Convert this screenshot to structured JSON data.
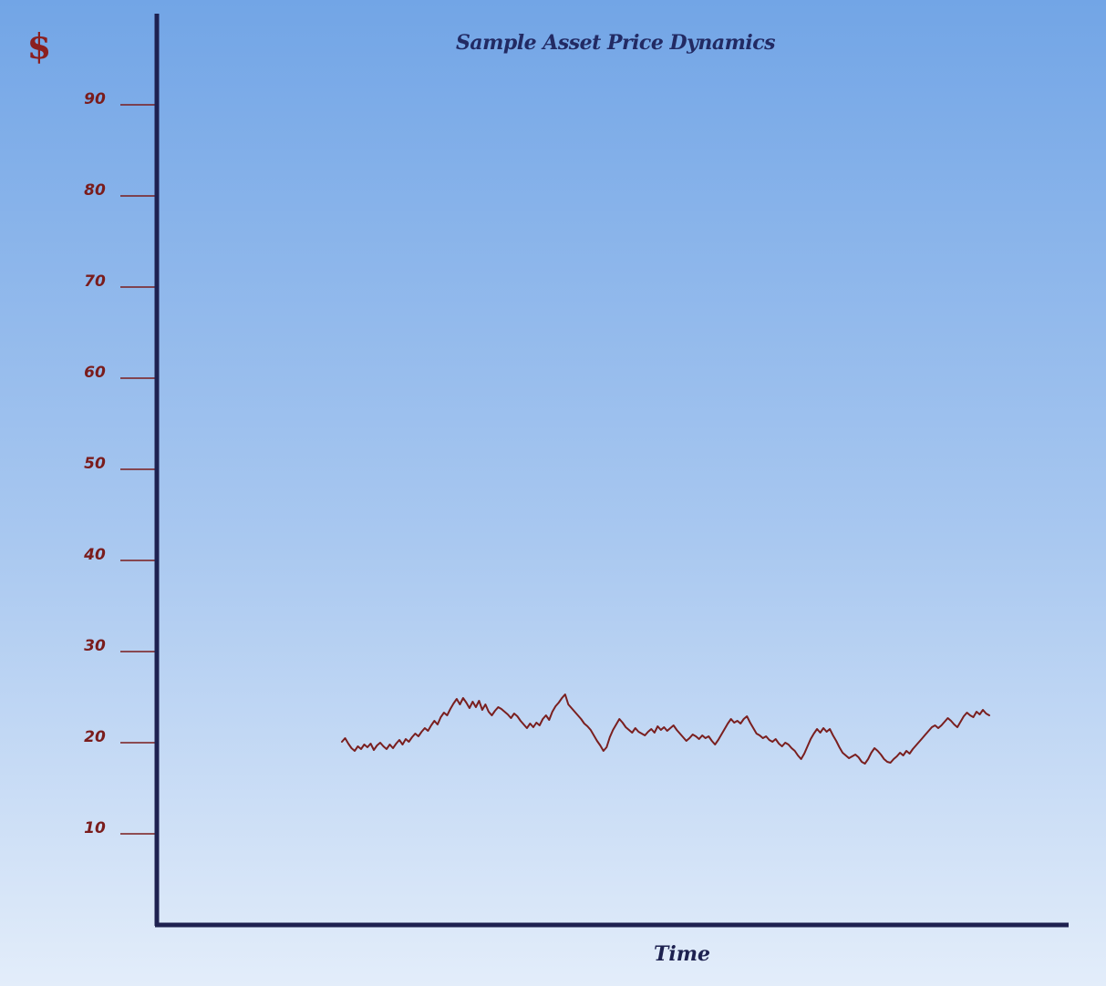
{
  "chart_data": {
    "type": "line",
    "title": "Sample Asset Price Dynamics",
    "xlabel": "Time",
    "ylabel": "$",
    "ylim": [
      0,
      100
    ],
    "yticks": [
      10,
      20,
      30,
      40,
      50,
      60,
      70,
      80,
      90
    ],
    "ytick_labels": [
      "10",
      "20",
      "30",
      "40",
      "50",
      "60",
      "70",
      "80",
      "90"
    ],
    "grid": false,
    "colors": {
      "line": "#7a1f1f",
      "axis": "#1e2150",
      "tick": "#7a1c1c"
    },
    "series": [
      {
        "values": [
          20.1,
          20.5,
          19.9,
          19.4,
          19.1,
          19.6,
          19.3,
          19.8,
          19.5,
          19.9,
          19.2,
          19.7,
          20.0,
          19.6,
          19.3,
          19.8,
          19.4,
          19.9,
          20.3,
          19.8,
          20.4,
          20.1,
          20.6,
          21.0,
          20.7,
          21.2,
          21.6,
          21.3,
          21.9,
          22.4,
          22.0,
          22.8,
          23.3,
          23.0,
          23.7,
          24.3,
          24.8,
          24.2,
          24.9,
          24.4,
          23.8,
          24.5,
          23.9,
          24.6,
          23.6,
          24.2,
          23.4,
          23.0,
          23.5,
          23.9,
          23.7,
          23.4,
          23.1,
          22.7,
          23.2,
          22.9,
          22.4,
          22.0,
          21.6,
          22.1,
          21.7,
          22.2,
          21.9,
          22.6,
          23.0,
          22.5,
          23.4,
          24.0,
          24.4,
          24.9,
          25.3,
          24.2,
          23.8,
          23.4,
          23.0,
          22.6,
          22.1,
          21.8,
          21.4,
          20.8,
          20.2,
          19.7,
          19.1,
          19.5,
          20.6,
          21.4,
          22.0,
          22.6,
          22.2,
          21.7,
          21.4,
          21.1,
          21.6,
          21.2,
          21.0,
          20.8,
          21.2,
          21.5,
          21.1,
          21.8,
          21.4,
          21.7,
          21.3,
          21.6,
          21.9,
          21.4,
          21.0,
          20.6,
          20.2,
          20.5,
          20.9,
          20.7,
          20.4,
          20.8,
          20.5,
          20.7,
          20.2,
          19.8,
          20.3,
          20.9,
          21.5,
          22.1,
          22.6,
          22.2,
          22.4,
          22.1,
          22.6,
          22.9,
          22.2,
          21.6,
          21.0,
          20.8,
          20.5,
          20.7,
          20.3,
          20.1,
          20.4,
          19.9,
          19.6,
          20.0,
          19.8,
          19.4,
          19.1,
          18.6,
          18.2,
          18.8,
          19.6,
          20.4,
          21.0,
          21.5,
          21.1,
          21.6,
          21.2,
          21.5,
          20.8,
          20.2,
          19.5,
          18.9,
          18.6,
          18.3,
          18.5,
          18.7,
          18.4,
          17.9,
          17.7,
          18.2,
          18.9,
          19.4,
          19.1,
          18.7,
          18.2,
          17.9,
          17.8,
          18.2,
          18.5,
          18.9,
          18.6,
          19.1,
          18.8,
          19.3,
          19.7,
          20.1,
          20.5,
          20.9,
          21.3,
          21.7,
          21.9,
          21.6,
          21.9,
          22.3,
          22.7,
          22.4,
          22.0,
          21.7,
          22.3,
          22.9,
          23.3,
          23.0,
          22.8,
          23.4,
          23.1,
          23.6,
          23.2,
          23.0
        ]
      }
    ]
  }
}
